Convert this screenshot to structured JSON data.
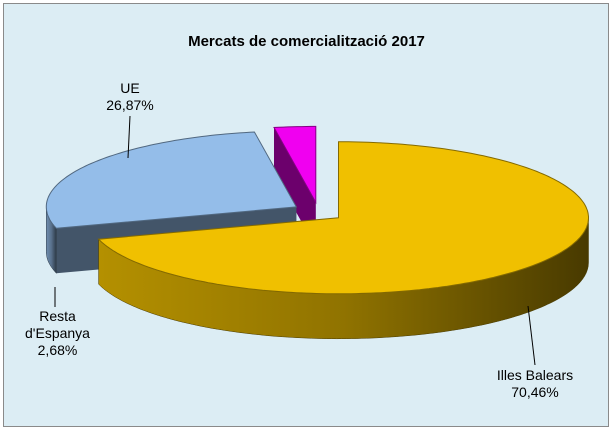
{
  "chart_data": {
    "type": "pie",
    "title": "Mercats de comercialització 2017",
    "categories": [
      "Illes Balears",
      "UE",
      "Resta d'Espanya"
    ],
    "values": [
      70.46,
      26.87,
      2.68
    ],
    "value_labels": [
      "70,46%",
      "26,87%",
      "2,68%"
    ],
    "colors": [
      "#f0c000",
      "#94bde9",
      "#f000f0"
    ]
  }
}
